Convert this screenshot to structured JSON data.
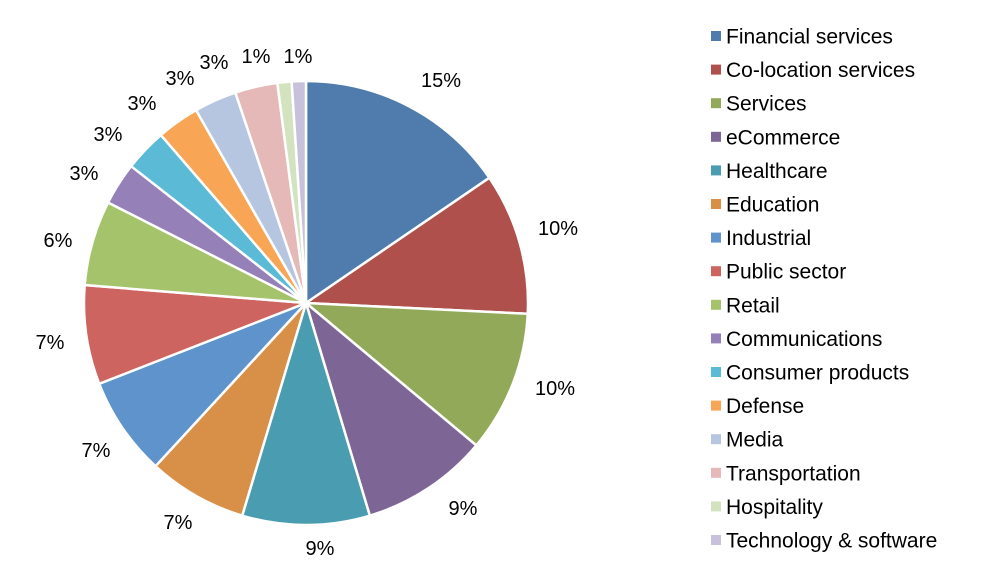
{
  "chart_data": {
    "type": "pie",
    "title": "",
    "legend_position": "right",
    "start_angle": "top, clockwise",
    "slices": [
      {
        "label": "Financial services",
        "value": 15,
        "display": "15%",
        "color": "#4F7CAC"
      },
      {
        "label": "Co-location services",
        "value": 10,
        "display": "10%",
        "color": "#B0504D"
      },
      {
        "label": "Services",
        "value": 10,
        "display": "10%",
        "color": "#93A95A"
      },
      {
        "label": "eCommerce",
        "value": 9,
        "display": "9%",
        "color": "#7D6696"
      },
      {
        "label": "Healthcare",
        "value": 9,
        "display": "9%",
        "color": "#4A9DB0"
      },
      {
        "label": "Education",
        "value": 7,
        "display": "7%",
        "color": "#D88F47"
      },
      {
        "label": "Industrial",
        "value": 7,
        "display": "7%",
        "color": "#5F93CB"
      },
      {
        "label": "Public sector",
        "value": 7,
        "display": "7%",
        "color": "#CE6460"
      },
      {
        "label": "Retail",
        "value": 6,
        "display": "6%",
        "color": "#A5C36A"
      },
      {
        "label": "Communications",
        "value": 3,
        "display": "3%",
        "color": "#9580B8"
      },
      {
        "label": "Consumer products",
        "value": 3,
        "display": "3%",
        "color": "#5BBAD5"
      },
      {
        "label": "Defense",
        "value": 3,
        "display": "3%",
        "color": "#F9A556"
      },
      {
        "label": "Media",
        "value": 3,
        "display": "3%",
        "color": "#B6C6E0"
      },
      {
        "label": "Transportation",
        "value": 3,
        "display": "3%",
        "color": "#E5B9B8"
      },
      {
        "label": "Hospitality",
        "value": 1,
        "display": "1%",
        "color": "#D3E3C0"
      },
      {
        "label": "Technology & software",
        "value": 1,
        "display": "1%",
        "color": "#C8C1DB"
      }
    ]
  }
}
